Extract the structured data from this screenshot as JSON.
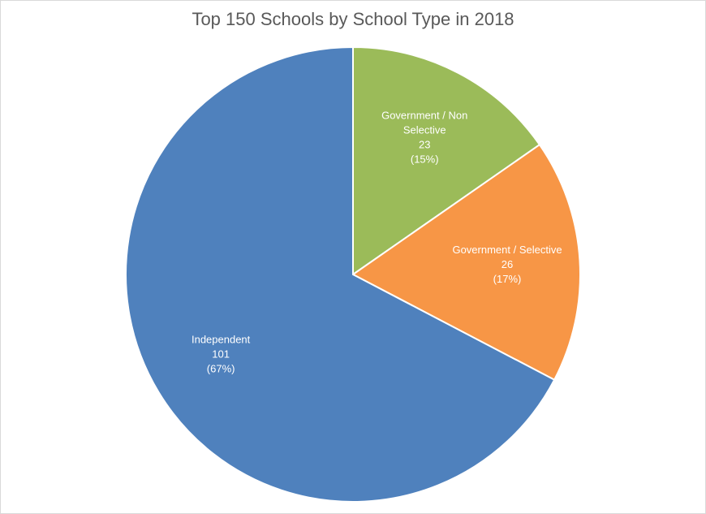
{
  "chart_data": {
    "type": "pie",
    "title": "Top 150 Schools by School Type in 2018",
    "slices": [
      {
        "name": "Government / Non Selective",
        "label_lines": [
          "Government / Non",
          "Selective"
        ],
        "value": 23,
        "percent_label": "(15%)",
        "color": "#9bbb59"
      },
      {
        "name": "Government / Selective",
        "label_lines": [
          "Government / Selective"
        ],
        "value": 26,
        "percent_label": "(17%)",
        "color": "#f79646"
      },
      {
        "name": "Independent",
        "label_lines": [
          "Independent"
        ],
        "value": 101,
        "percent_label": "(67%)",
        "color": "#4f81bd"
      }
    ],
    "start_angle_deg": 0,
    "direction": "clockwise",
    "legend": "none"
  }
}
